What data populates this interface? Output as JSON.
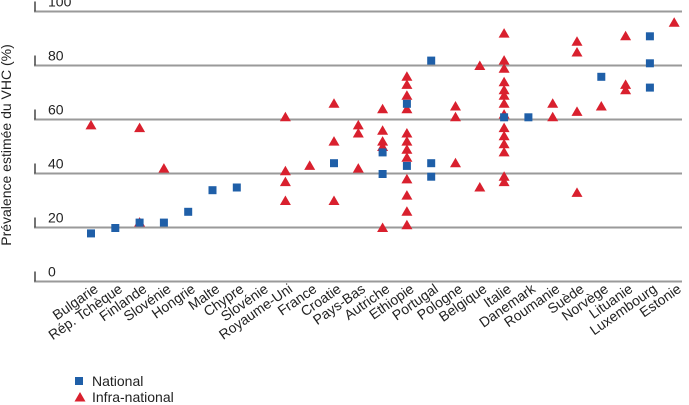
{
  "chart_data": {
    "type": "scatter",
    "title": "",
    "xlabel": "",
    "ylabel": "Prévalence estimée du VHC (%)",
    "ylim": [
      0,
      100
    ],
    "yticks": [
      0,
      20,
      40,
      60,
      80,
      100
    ],
    "grid": true,
    "legend_position": "bottom-left",
    "categories": [
      "Bulgarie",
      "Rép. Tchèque",
      "Finlande",
      "Slovénie",
      "Hongrie",
      "Malte",
      "Chypre",
      "Slovénie",
      "Royaume-Uni",
      "France",
      "Croatie",
      "Pays-Bas",
      "Autriche",
      "Ethiopie",
      "Portugal",
      "Pologne",
      "Belgique",
      "Italie",
      "Danemark",
      "Roumanie",
      "Suède",
      "Norvège",
      "Lituanie",
      "Luxembourg",
      "Estonie"
    ],
    "series": [
      {
        "name": "National",
        "marker": "square",
        "color": "#1f5fa8",
        "points": [
          {
            "x": "Bulgarie",
            "y": 18
          },
          {
            "x": "Rép. Tchèque",
            "y": 20
          },
          {
            "x": "Finlande",
            "y": 22
          },
          {
            "x": "Slovénie",
            "y": 22
          },
          {
            "x": "Hongrie",
            "y": 26
          },
          {
            "x": "Malte",
            "y": 34
          },
          {
            "x": "Chypre",
            "y": 35
          },
          {
            "x": "Croatie",
            "y": 44
          },
          {
            "x": "Autriche",
            "y": 48
          },
          {
            "x": "Autriche",
            "y": 40
          },
          {
            "x": "Ethiopie",
            "y": 66
          },
          {
            "x": "Ethiopie",
            "y": 43
          },
          {
            "x": "Portugal",
            "y": 82
          },
          {
            "x": "Portugal",
            "y": 44
          },
          {
            "x": "Portugal",
            "y": 39
          },
          {
            "x": "Italie",
            "y": 61
          },
          {
            "x": "Danemark",
            "y": 61
          },
          {
            "x": "Norvège",
            "y": 76
          },
          {
            "x": "Luxembourg",
            "y": 91
          },
          {
            "x": "Luxembourg",
            "y": 81
          },
          {
            "x": "Luxembourg",
            "y": 72
          }
        ]
      },
      {
        "name": "Infra-national",
        "marker": "triangle",
        "color": "#d9202e",
        "points": [
          {
            "x": "Bulgarie",
            "y": 58
          },
          {
            "x": "Finlande",
            "y": 57
          },
          {
            "x": "Finlande",
            "y": 22
          },
          {
            "x": "Slovénie",
            "y": 42
          },
          {
            "x": "Royaume-Uni",
            "y": 61
          },
          {
            "x": "Royaume-Uni",
            "y": 41
          },
          {
            "x": "Royaume-Uni",
            "y": 37
          },
          {
            "x": "Royaume-Uni",
            "y": 30
          },
          {
            "x": "France",
            "y": 43
          },
          {
            "x": "Croatie",
            "y": 66
          },
          {
            "x": "Croatie",
            "y": 52
          },
          {
            "x": "Croatie",
            "y": 30
          },
          {
            "x": "Pays-Bas",
            "y": 58
          },
          {
            "x": "Pays-Bas",
            "y": 55
          },
          {
            "x": "Pays-Bas",
            "y": 42
          },
          {
            "x": "Autriche",
            "y": 64
          },
          {
            "x": "Autriche",
            "y": 56
          },
          {
            "x": "Autriche",
            "y": 52
          },
          {
            "x": "Autriche",
            "y": 50
          },
          {
            "x": "Autriche",
            "y": 20
          },
          {
            "x": "Ethiopie",
            "y": 76
          },
          {
            "x": "Ethiopie",
            "y": 73
          },
          {
            "x": "Ethiopie",
            "y": 69
          },
          {
            "x": "Ethiopie",
            "y": 64
          },
          {
            "x": "Ethiopie",
            "y": 55
          },
          {
            "x": "Ethiopie",
            "y": 52
          },
          {
            "x": "Ethiopie",
            "y": 49
          },
          {
            "x": "Ethiopie",
            "y": 46
          },
          {
            "x": "Ethiopie",
            "y": 38
          },
          {
            "x": "Ethiopie",
            "y": 32
          },
          {
            "x": "Ethiopie",
            "y": 26
          },
          {
            "x": "Ethiopie",
            "y": 21
          },
          {
            "x": "Pologne",
            "y": 65
          },
          {
            "x": "Pologne",
            "y": 61
          },
          {
            "x": "Pologne",
            "y": 44
          },
          {
            "x": "Belgique",
            "y": 80
          },
          {
            "x": "Belgique",
            "y": 35
          },
          {
            "x": "Italie",
            "y": 92
          },
          {
            "x": "Italie",
            "y": 82
          },
          {
            "x": "Italie",
            "y": 79
          },
          {
            "x": "Italie",
            "y": 74
          },
          {
            "x": "Italie",
            "y": 71
          },
          {
            "x": "Italie",
            "y": 69
          },
          {
            "x": "Italie",
            "y": 66
          },
          {
            "x": "Italie",
            "y": 62
          },
          {
            "x": "Italie",
            "y": 57
          },
          {
            "x": "Italie",
            "y": 54
          },
          {
            "x": "Italie",
            "y": 51
          },
          {
            "x": "Italie",
            "y": 48
          },
          {
            "x": "Italie",
            "y": 39
          },
          {
            "x": "Italie",
            "y": 37
          },
          {
            "x": "Roumanie",
            "y": 66
          },
          {
            "x": "Roumanie",
            "y": 61
          },
          {
            "x": "Suède",
            "y": 89
          },
          {
            "x": "Suède",
            "y": 85
          },
          {
            "x": "Suède",
            "y": 63
          },
          {
            "x": "Suède",
            "y": 33
          },
          {
            "x": "Norvège",
            "y": 65
          },
          {
            "x": "Lituanie",
            "y": 91
          },
          {
            "x": "Lituanie",
            "y": 73
          },
          {
            "x": "Lituanie",
            "y": 71
          },
          {
            "x": "Estonie",
            "y": 96
          }
        ]
      }
    ]
  }
}
